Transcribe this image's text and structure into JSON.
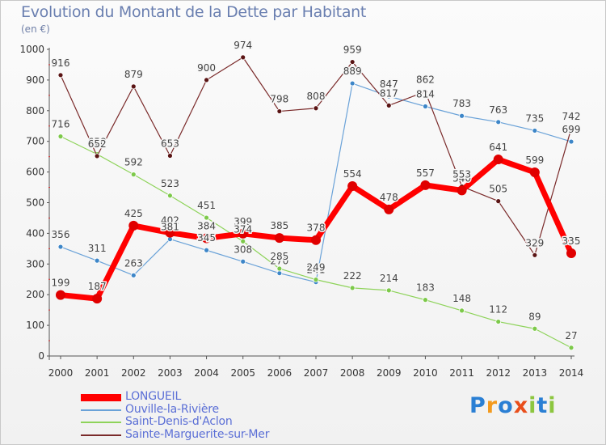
{
  "header": {
    "title": "Evolution du Montant de la Dette par Habitant",
    "unit": "(en €)"
  },
  "logo": {
    "letters": [
      {
        "ch": "P",
        "color": "#2a7fd4"
      },
      {
        "ch": "r",
        "color": "#f39a1e"
      },
      {
        "ch": "o",
        "color": "#2a7fd4"
      },
      {
        "ch": "x",
        "color": "#e94e1b"
      },
      {
        "ch": "i",
        "color": "#8cc63f"
      },
      {
        "ch": "t",
        "color": "#2a7fd4"
      },
      {
        "ch": "i",
        "color": "#8cc63f"
      }
    ]
  },
  "chart_data": {
    "type": "line",
    "title": "Evolution du Montant de la Dette par Habitant",
    "ylabel": "(en €)",
    "xlabel": "",
    "ylim": [
      0,
      1000
    ],
    "yticks": [
      0,
      100,
      200,
      300,
      400,
      500,
      600,
      700,
      800,
      900,
      1000
    ],
    "x": [
      "2000",
      "2001",
      "2002",
      "2003",
      "2004",
      "2005",
      "2006",
      "2007",
      "2008",
      "2009",
      "2010",
      "2011",
      "2012",
      "2013",
      "2014"
    ],
    "grid": false,
    "legend_position": "bottom-left",
    "series": [
      {
        "name": "LONGUEIL",
        "color": "#ff0000",
        "dot": "#e00000",
        "width": 7,
        "r": 6,
        "values": [
          199,
          187,
          425,
          402,
          384,
          399,
          385,
          378,
          554,
          478,
          557,
          540,
          641,
          599,
          335
        ]
      },
      {
        "name": "Ouville-la-Rivière",
        "color": "#6aa2d8",
        "dot": "#3d86c8",
        "width": 1.2,
        "r": 3,
        "values": [
          356,
          311,
          263,
          381,
          345,
          308,
          270,
          241,
          889,
          847,
          814,
          783,
          763,
          735,
          699
        ]
      },
      {
        "name": "Saint-Denis-d'Aclon",
        "color": "#8ed35a",
        "dot": "#7dc94a",
        "width": 1.2,
        "r": 3,
        "values": [
          716,
          658,
          592,
          523,
          451,
          374,
          285,
          249,
          222,
          214,
          183,
          148,
          112,
          89,
          27
        ]
      },
      {
        "name": "Sainte-Marguerite-sur-Mer",
        "color": "#7a2a2a",
        "dot": "#5a1414",
        "width": 1.2,
        "r": 3,
        "values": [
          916,
          652,
          879,
          653,
          900,
          974,
          798,
          808,
          959,
          817,
          862,
          553,
          505,
          329,
          742
        ]
      }
    ]
  }
}
